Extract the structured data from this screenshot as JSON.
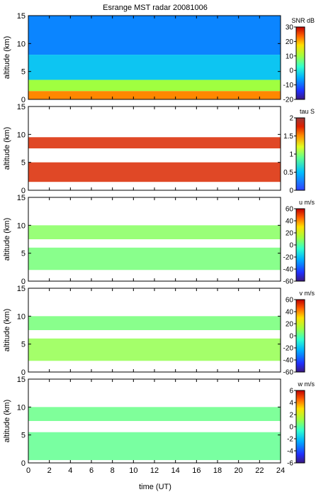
{
  "figure": {
    "title": "Esrange MST radar 20081006",
    "xlabel": "time (UT)",
    "x_ticks": [
      0,
      2,
      4,
      6,
      8,
      10,
      12,
      14,
      16,
      18,
      20,
      22,
      24
    ],
    "xlim": [
      0,
      24
    ]
  },
  "chart_data": [
    {
      "type": "heatmap",
      "ylabel": "altitude (km)",
      "ylim": [
        0,
        15
      ],
      "y_ticks": [
        0,
        5,
        10,
        15
      ],
      "colorbar": {
        "label": "SNR dB",
        "range": [
          -20,
          30
        ],
        "ticks": [
          30,
          20,
          10,
          0,
          -10,
          -20
        ]
      },
      "layers": [
        {
          "alt_km": [
            0,
            1.5
          ],
          "value_db": 22
        },
        {
          "alt_km": [
            1.5,
            3.5
          ],
          "value_db": 10
        },
        {
          "alt_km": [
            3.5,
            8
          ],
          "value_db": -3
        },
        {
          "alt_km": [
            8,
            15
          ],
          "value_db": -8
        }
      ]
    },
    {
      "type": "heatmap",
      "ylabel": "altitude (km)",
      "ylim": [
        0,
        15
      ],
      "y_ticks": [
        0,
        5,
        10,
        15
      ],
      "colorbar": {
        "label": "tau S",
        "range": [
          0,
          2
        ],
        "ticks": [
          2,
          1.5,
          1,
          0.5,
          0
        ]
      },
      "layers": [
        {
          "alt_km": [
            1.5,
            5
          ],
          "value_s": 1.9
        },
        {
          "alt_km": [
            7.5,
            9.5
          ],
          "value_s": 1.9
        }
      ]
    },
    {
      "type": "heatmap",
      "ylabel": "altitude (km)",
      "ylim": [
        0,
        15
      ],
      "y_ticks": [
        0,
        5,
        10,
        15
      ],
      "colorbar": {
        "label": "u m/s",
        "range": [
          -60,
          60
        ],
        "ticks": [
          60,
          40,
          20,
          0,
          -20,
          -40,
          -60
        ]
      },
      "layers": [
        {
          "alt_km": [
            2,
            6
          ],
          "value_ms": 5
        },
        {
          "alt_km": [
            7.5,
            10
          ],
          "value_ms": 8
        }
      ]
    },
    {
      "type": "heatmap",
      "ylabel": "altitude (km)",
      "ylim": [
        0,
        15
      ],
      "y_ticks": [
        0,
        5,
        10,
        15
      ],
      "colorbar": {
        "label": "v m/s",
        "range": [
          -60,
          60
        ],
        "ticks": [
          60,
          40,
          20,
          0,
          -20,
          -40,
          -60
        ]
      },
      "layers": [
        {
          "alt_km": [
            2,
            6
          ],
          "value_ms": 10
        },
        {
          "alt_km": [
            7.5,
            10
          ],
          "value_ms": 5
        }
      ]
    },
    {
      "type": "heatmap",
      "ylabel": "altitude (km)",
      "ylim": [
        0,
        15
      ],
      "y_ticks": [
        0,
        5,
        10,
        15
      ],
      "colorbar": {
        "label": "w m/s",
        "range": [
          -6,
          6
        ],
        "ticks": [
          6,
          4,
          2,
          0,
          -2,
          -4,
          -6
        ]
      },
      "layers": [
        {
          "alt_km": [
            0.5,
            5.5
          ],
          "value_ms": 0.2
        },
        {
          "alt_km": [
            7.5,
            10
          ],
          "value_ms": 0.3
        }
      ]
    }
  ]
}
